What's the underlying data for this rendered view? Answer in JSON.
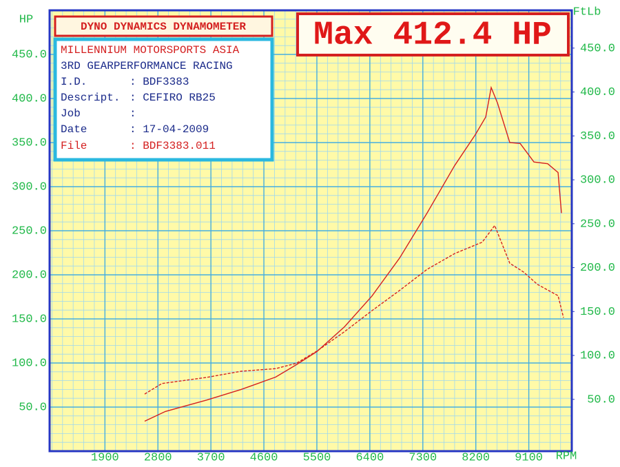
{
  "chart_data": {
    "type": "line",
    "header_box": "DYNO DYNAMICS DYNAMOMETER",
    "max_box": "Max 412.4 HP",
    "info_box": {
      "lines": [
        "MILLENNIUM MOTORSPORTS ASIA",
        "3RD GEARPERFORMANCE RACING"
      ],
      "fields": [
        {
          "label": "I.D.",
          "value": ": BDF3383"
        },
        {
          "label": "Descript.",
          "value": ": CEFIRO RB25"
        },
        {
          "label": "Job",
          "value": ":"
        },
        {
          "label": "Date",
          "value": ": 17-04-2009"
        },
        {
          "label": "File",
          "value": ": BDF3383.011"
        }
      ]
    },
    "y_label": "HP",
    "y2_label": "FtLb",
    "x_label": "RPM",
    "xlim": [
      960,
      9830
    ],
    "xticks": [
      1900,
      2800,
      3700,
      4600,
      5500,
      6400,
      7300,
      8200,
      9100
    ],
    "ylim": [
      0,
      500
    ],
    "yticks": [
      {
        "value": 50,
        "label": "50.0"
      },
      {
        "value": 100,
        "label": "100.0"
      },
      {
        "value": 150,
        "label": "150.0"
      },
      {
        "value": 200,
        "label": "200.0"
      },
      {
        "value": 250,
        "label": "250.0"
      },
      {
        "value": 300,
        "label": "300.0"
      },
      {
        "value": 350,
        "label": "350.0"
      },
      {
        "value": 400,
        "label": "400.0"
      },
      {
        "value": 450,
        "label": "450.0"
      }
    ],
    "y2lim": [
      -9,
      493
    ],
    "y2ticks": [
      {
        "value": 50,
        "label": "50.0"
      },
      {
        "value": 100,
        "label": "100.0"
      },
      {
        "value": 150,
        "label": "150.0"
      },
      {
        "value": 200,
        "label": "200.0"
      },
      {
        "value": 250,
        "label": "250.0"
      },
      {
        "value": 300,
        "label": "300.0"
      },
      {
        "value": 350,
        "label": "350.0"
      },
      {
        "value": 400,
        "label": "400.0"
      },
      {
        "value": 450,
        "label": "450.0"
      }
    ],
    "grid": true,
    "series": [
      {
        "color": "#d42020",
        "dash": false,
        "axis": "y",
        "x": [
          2575,
          2926,
          3628,
          4213,
          4798,
          5149,
          5500,
          5968,
          6436,
          6904,
          7372,
          7841,
          8192,
          8368,
          8461,
          8567,
          8777,
          8953,
          9187,
          9421,
          9597,
          9655
        ],
        "values": [
          34,
          45,
          58,
          70,
          84,
          98,
          113,
          141,
          176,
          219,
          270,
          324,
          359,
          379,
          412.4,
          395,
          350,
          349,
          328,
          326,
          316,
          270
        ]
      },
      {
        "color": "#d42020",
        "dash": true,
        "axis": "y2",
        "x": [
          2575,
          2867,
          3628,
          4213,
          4798,
          5149,
          5500,
          5968,
          6436,
          6904,
          7372,
          7841,
          8309,
          8520,
          8777,
          9011,
          9245,
          9597,
          9690
        ],
        "values": [
          56,
          68,
          75,
          82,
          85,
          91,
          105,
          127,
          151,
          174,
          198,
          216,
          229,
          248,
          205,
          195,
          181,
          168,
          143
        ]
      }
    ]
  }
}
